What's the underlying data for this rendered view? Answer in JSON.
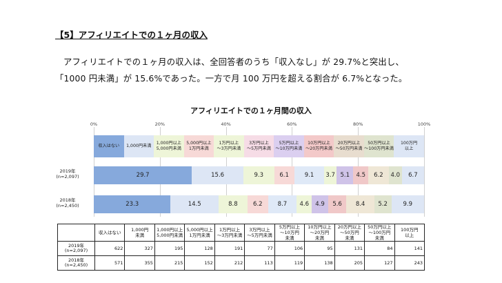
{
  "heading": "【5】アフィリエイトでの１ヶ月の収入",
  "paragraph": {
    "line1": "アフィリエイトでの１ヶ月の収入は、全回答者のうち「収入なし」が 29.7%と突出し、",
    "line2": "「1000 円未満」が 15.6%であった。一方で月 100 万円を超える割合が 6.7%となった。"
  },
  "chart_data": {
    "type": "bar",
    "orientation": "horizontal-stacked-100",
    "title": "アフィリエイトでの１ヶ月間の収入",
    "x_ticks": [
      "0%",
      "20%",
      "40%",
      "60%",
      "80%",
      "100%"
    ],
    "categories": [
      "収入はない",
      "1,000円未満",
      "1,000円以上\n5,000円未満",
      "5,000円以上\n1万円未満",
      "1万円以上\n～3万円未満",
      "3万円以上\n～5万円未満",
      "5万円以上\n～10万円未満",
      "10万円以上\n～20万円未満",
      "20万円以上\n～50万円未満",
      "50万円以上\n～100万円未満",
      "100万円\n以上"
    ],
    "colors": [
      "#86a9dc",
      "#dde6f5",
      "#e6f0d2",
      "#f7d9d7",
      "#eaf2dc",
      "#f6dce6",
      "#dfe9f7",
      "#efe5ef",
      "#f0d0d0",
      "#e8ddcf",
      "#dfe4cf"
    ],
    "legend_colors": [
      "#86a9dc",
      "#dde6f5",
      "#eef5d8",
      "#f7d9d7",
      "#eef5d8",
      "#f6dce6",
      "#dbcff0",
      "#f3c9c9",
      "#e8ddcf",
      "#dfe4cf",
      "#dde6f5"
    ],
    "series": [
      {
        "name": "2019年\n(n=2,097)",
        "values": [
          29.7,
          15.6,
          9.3,
          6.1,
          9.1,
          3.7,
          5.1,
          4.5,
          6.2,
          4.0,
          6.7
        ],
        "seg_colors": [
          "#86a9dc",
          "#dde6f5",
          "#eef5d8",
          "#f7d9d7",
          "#dfe9f7",
          "#eef5d8",
          "#cfc3e8",
          "#f0c8c8",
          "#efe7d6",
          "#dfe4cf",
          "#dde6f5"
        ]
      },
      {
        "name": "2018年\n(n=2,450)",
        "values": [
          23.3,
          14.5,
          8.8,
          6.2,
          8.7,
          4.6,
          4.9,
          5.6,
          8.4,
          5.2,
          9.9
        ],
        "seg_colors": [
          "#86a9dc",
          "#dde6f5",
          "#eef5d8",
          "#f7d9d7",
          "#dfe9f7",
          "#eef5d8",
          "#cfc3e8",
          "#f0c8c8",
          "#efe7d6",
          "#dfe4cf",
          "#dde6f5"
        ]
      }
    ]
  },
  "table": {
    "headers": [
      "",
      "収入はない",
      "1,000円\n未満",
      "1,000円以上\n5,000円未満",
      "5,000円以上\n1万円未満",
      "1万円以上\n～3万円未満",
      "3万円以上\n～5万円未満",
      "5万円以上\n～10万円\n未満",
      "10万円以上\n～20万円\n未満",
      "20万円以上\n～50万円\n未満",
      "50万円以上\n～100万円\n未満",
      "100万円\n以上"
    ],
    "rows": [
      {
        "label": "2019年\n(n=2,097)",
        "values": [
          "622",
          "327",
          "195",
          "128",
          "191",
          "77",
          "106",
          "95",
          "131",
          "84",
          "141"
        ]
      },
      {
        "label": "2018年\n(n=2,450)",
        "values": [
          "571",
          "355",
          "215",
          "152",
          "212",
          "113",
          "119",
          "138",
          "205",
          "127",
          "243"
        ]
      }
    ]
  }
}
